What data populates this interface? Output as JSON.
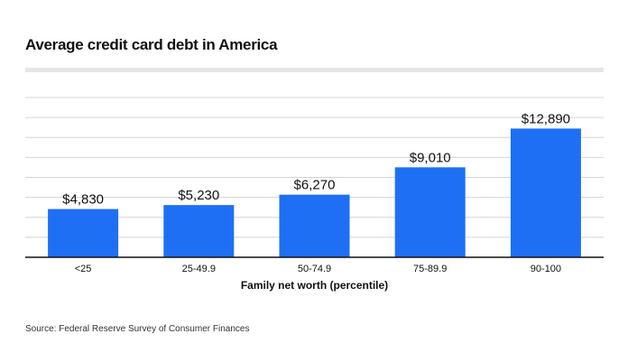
{
  "chart_data": {
    "type": "bar",
    "title": "Average credit card debt in America",
    "xlabel": "Family net worth (percentile)",
    "ylabel": "",
    "categories": [
      "<25",
      "25-49.9",
      "50-74.9",
      "75-89.9",
      "90-100"
    ],
    "values": [
      4830,
      5230,
      6270,
      9010,
      12890
    ],
    "data_labels": [
      "$4,830",
      "$5,230",
      "$6,270",
      "$9,010",
      "$12,890"
    ],
    "ylim": [
      0,
      16000
    ],
    "grid": true,
    "grid_step": 2000,
    "bar_color": "#1f6ff5",
    "source": "Source: Federal Reserve Survey of Consumer Finances"
  }
}
